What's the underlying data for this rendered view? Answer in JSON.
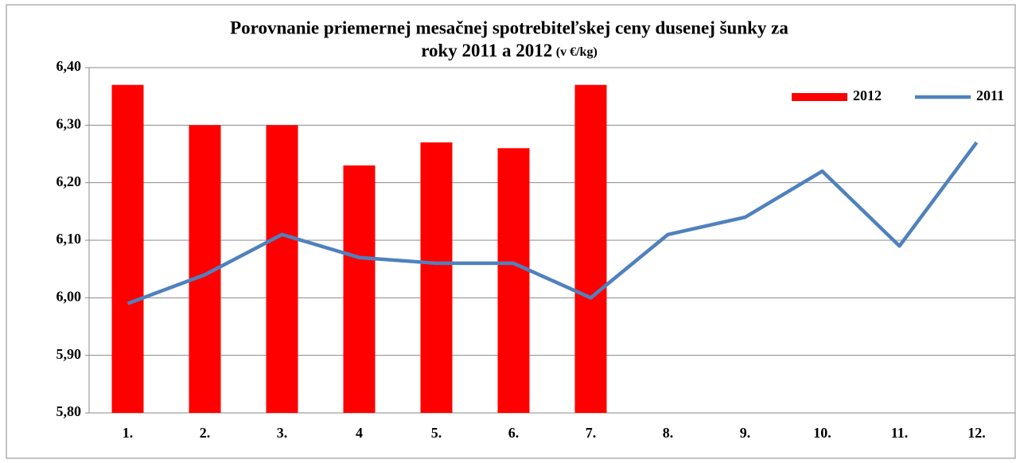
{
  "chart_data": {
    "type": "bar",
    "title": [
      "Porovnanie priemernej mesačnej spotrebiteľskej ceny dusenej šunky  za",
      "roky 2011 a 2012",
      "(v €/kg)"
    ],
    "categories": [
      "1.",
      "2.",
      "3.",
      "4",
      "5.",
      "6.",
      "7.",
      "8.",
      "9.",
      "10.",
      "11.",
      "12."
    ],
    "series": [
      {
        "name": "2012",
        "type": "bar",
        "color": "#ff0000",
        "values": [
          6.37,
          6.3,
          6.3,
          6.23,
          6.27,
          6.26,
          6.37,
          null,
          null,
          null,
          null,
          null
        ]
      },
      {
        "name": "2011",
        "type": "line",
        "color": "#4f81bd",
        "values": [
          5.99,
          6.04,
          6.11,
          6.07,
          6.06,
          6.06,
          6.0,
          6.11,
          6.14,
          6.22,
          6.09,
          6.27
        ]
      }
    ],
    "ylim": [
      5.8,
      6.4
    ],
    "yticks": [
      {
        "value": 5.8,
        "label": "5,80"
      },
      {
        "value": 5.9,
        "label": "5,90"
      },
      {
        "value": 6.0,
        "label": "6,00"
      },
      {
        "value": 6.1,
        "label": "6,10"
      },
      {
        "value": 6.2,
        "label": "6,20"
      },
      {
        "value": 6.3,
        "label": "6,30"
      },
      {
        "value": 6.4,
        "label": "6,40"
      }
    ],
    "grid": true,
    "legend": "top-right"
  }
}
